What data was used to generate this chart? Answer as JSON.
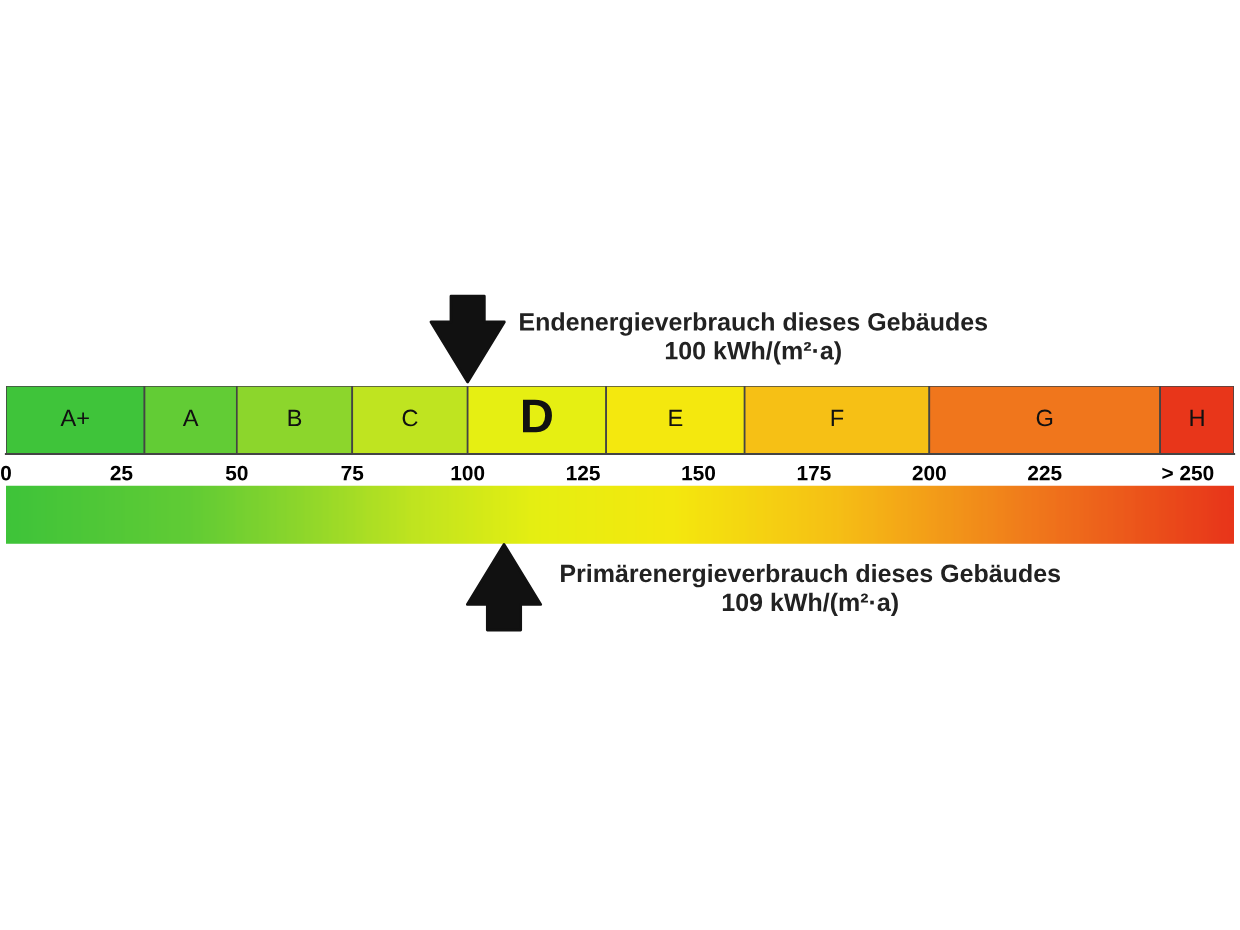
{
  "chart_data": {
    "type": "bar",
    "orientation": "horizontal",
    "stacked": true,
    "categories": [
      null
    ],
    "series": [
      {
        "name": "A+",
        "color": "#3fc43a",
        "values": [
          30
        ]
      },
      {
        "name": "A",
        "color": "#62cc35",
        "values": [
          20
        ]
      },
      {
        "name": "B",
        "color": "#8cd62c",
        "values": [
          25
        ]
      },
      {
        "name": "C",
        "color": "#bfe420",
        "values": [
          25
        ]
      },
      {
        "name": "D",
        "color": "#e6ef12",
        "values": [
          30
        ]
      },
      {
        "name": "E",
        "color": "#f4e80e",
        "values": [
          30
        ]
      },
      {
        "name": "F",
        "color": "#f6c015",
        "values": [
          40
        ]
      },
      {
        "name": "G",
        "color": "#f0761c",
        "values": [
          50
        ]
      },
      {
        "name": "H",
        "color": "#e8361a",
        "values": [
          16
        ]
      }
    ],
    "xlim": [
      0,
      266
    ],
    "xticks": [
      0,
      25,
      50,
      75,
      100,
      125,
      150,
      175,
      200,
      225,
      {
        "value": 256,
        "label": "> 250"
      }
    ],
    "tick_labels": "x",
    "annotations": [
      {
        "text": "Endenergieverbrauch dieses Gebäudes\n100 kWh/(m²·a)",
        "x": 100
      },
      "Primärenergieverbrauch dieses Gebäudes\n109 kWh/(m²·a)"
    ]
  }
}
